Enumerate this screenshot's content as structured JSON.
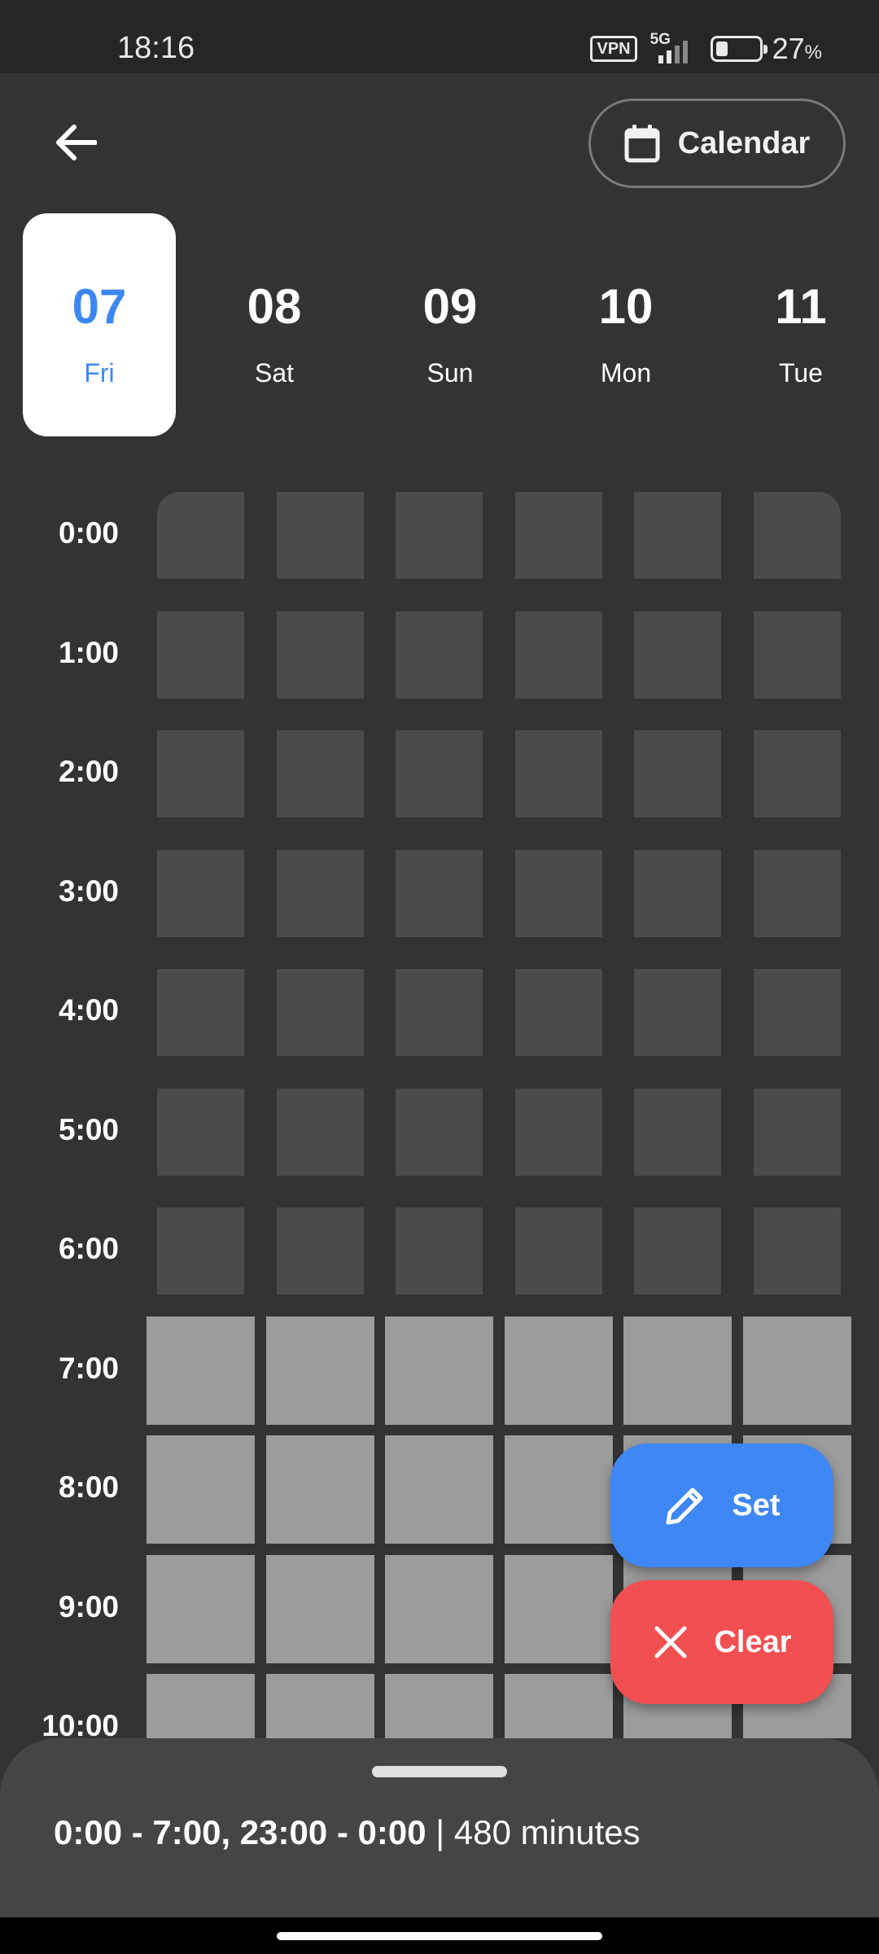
{
  "status_bar": {
    "time": "18:16",
    "vpn": "VPN",
    "network": "5G",
    "battery_level": 0.27,
    "battery_percent": "27",
    "battery_unit": "%"
  },
  "header": {
    "calendar_label": "Calendar"
  },
  "days": [
    {
      "num": "07",
      "weekday": "Fri",
      "selected": true
    },
    {
      "num": "08",
      "weekday": "Sat",
      "selected": false
    },
    {
      "num": "09",
      "weekday": "Sun",
      "selected": false
    },
    {
      "num": "10",
      "weekday": "Mon",
      "selected": false
    },
    {
      "num": "11",
      "weekday": "Tue",
      "selected": false
    }
  ],
  "grid": {
    "hours": [
      "0:00",
      "1:00",
      "2:00",
      "3:00",
      "4:00",
      "5:00",
      "6:00",
      "7:00",
      "8:00",
      "9:00",
      "10:00"
    ],
    "columns": 6,
    "active_hours": [
      7,
      8,
      9,
      10
    ]
  },
  "actions": {
    "set_label": "Set",
    "clear_label": "Clear"
  },
  "summary": {
    "ranges": "0:00 - 7:00, 23:00 - 0:00",
    "separator": "|",
    "minutes": "480 minutes"
  },
  "colors": {
    "accent": "#3f87f5",
    "danger": "#f24f52",
    "background": "#333333",
    "cell_inactive": "#4b4b4b",
    "cell_active": "#9c9c9c"
  }
}
